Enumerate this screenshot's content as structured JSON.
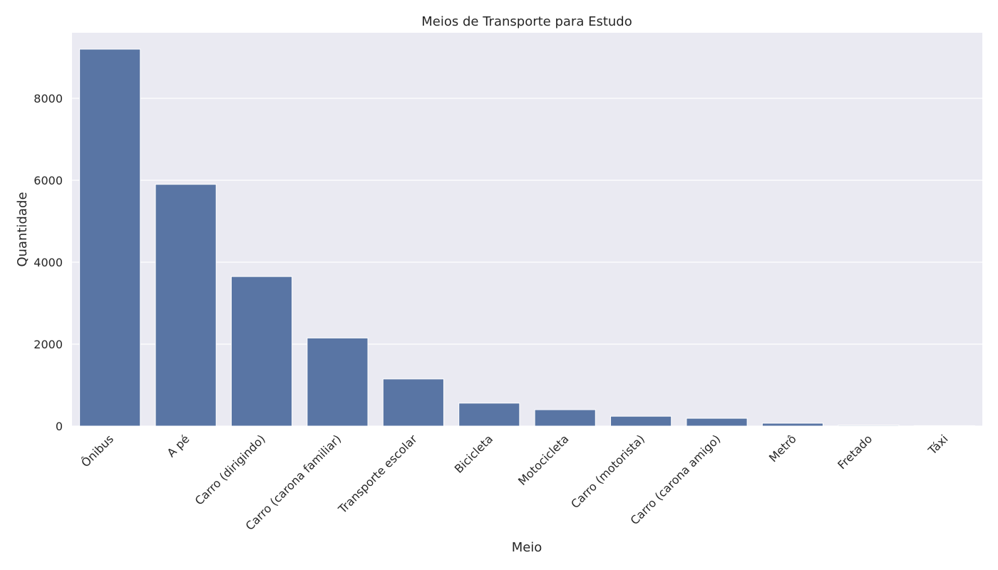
{
  "chart_data": {
    "type": "bar",
    "title": "Meios de Transporte para Estudo",
    "xlabel": "Meio",
    "ylabel": "Quantidade",
    "categories": [
      "Ônibus",
      "A pé",
      "Carro (dirigindo)",
      "Carro (carona familiar)",
      "Transporte escolar",
      "Bicicleta",
      "Motocicleta",
      "Carro (motorista)",
      "Carro (carona amigo)",
      "Metrô",
      "Fretado",
      "Táxi"
    ],
    "values": [
      9200,
      5900,
      3650,
      2150,
      1150,
      560,
      400,
      240,
      190,
      70,
      20,
      10
    ],
    "ylim": [
      0,
      9600
    ],
    "yticks": [
      0,
      2000,
      4000,
      6000,
      8000
    ],
    "grid": true,
    "colors": {
      "bar": "#5975a4",
      "plot_background": "#eaeaf2",
      "gridline": "#ffffff",
      "text": "#262626"
    }
  }
}
